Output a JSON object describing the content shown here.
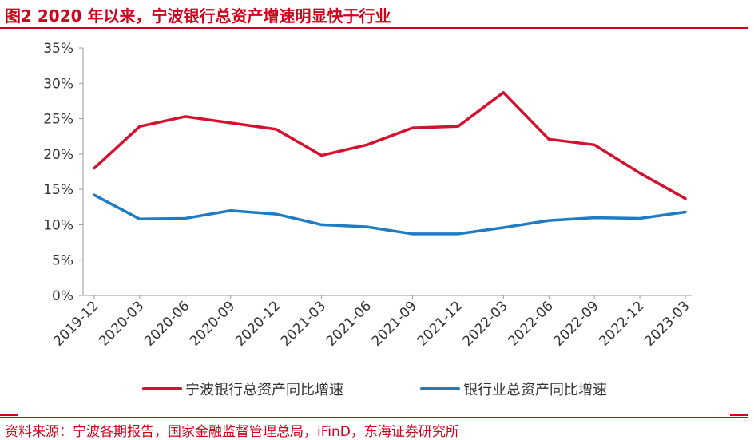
{
  "figure": {
    "title": "图2  2020 年以来，宁波银行总资产增速明显快于行业",
    "source": "资料来源：宁波各期报告，国家金融监督管理总局，iFinD，东海证券研究所"
  },
  "colors": {
    "accent": "#d0021b",
    "series_bank": "#d4112e",
    "series_industry": "#1f7bc2"
  },
  "chart_data": {
    "type": "line",
    "x": [
      "2019-12",
      "2020-03",
      "2020-06",
      "2020-09",
      "2020-12",
      "2021-03",
      "2021-06",
      "2021-09",
      "2021-12",
      "2022-03",
      "2022-06",
      "2022-09",
      "2022-12",
      "2023-03"
    ],
    "series": [
      {
        "name": "宁波银行总资产同比增速",
        "values": [
          18.0,
          23.9,
          25.3,
          24.4,
          23.5,
          19.8,
          21.3,
          23.7,
          23.9,
          28.7,
          22.1,
          21.3,
          17.3,
          13.7
        ]
      },
      {
        "name": "银行业总资产同比增速",
        "values": [
          14.2,
          10.8,
          10.9,
          12.0,
          11.5,
          10.0,
          9.7,
          8.7,
          8.7,
          9.6,
          10.6,
          11.0,
          10.9,
          11.8
        ]
      }
    ],
    "y_ticks": [
      "0%",
      "5%",
      "10%",
      "15%",
      "20%",
      "25%",
      "30%",
      "35%"
    ],
    "ylim": [
      0,
      35
    ],
    "ylabel": "",
    "xlabel": "",
    "grid": false,
    "legend": "bottom"
  }
}
